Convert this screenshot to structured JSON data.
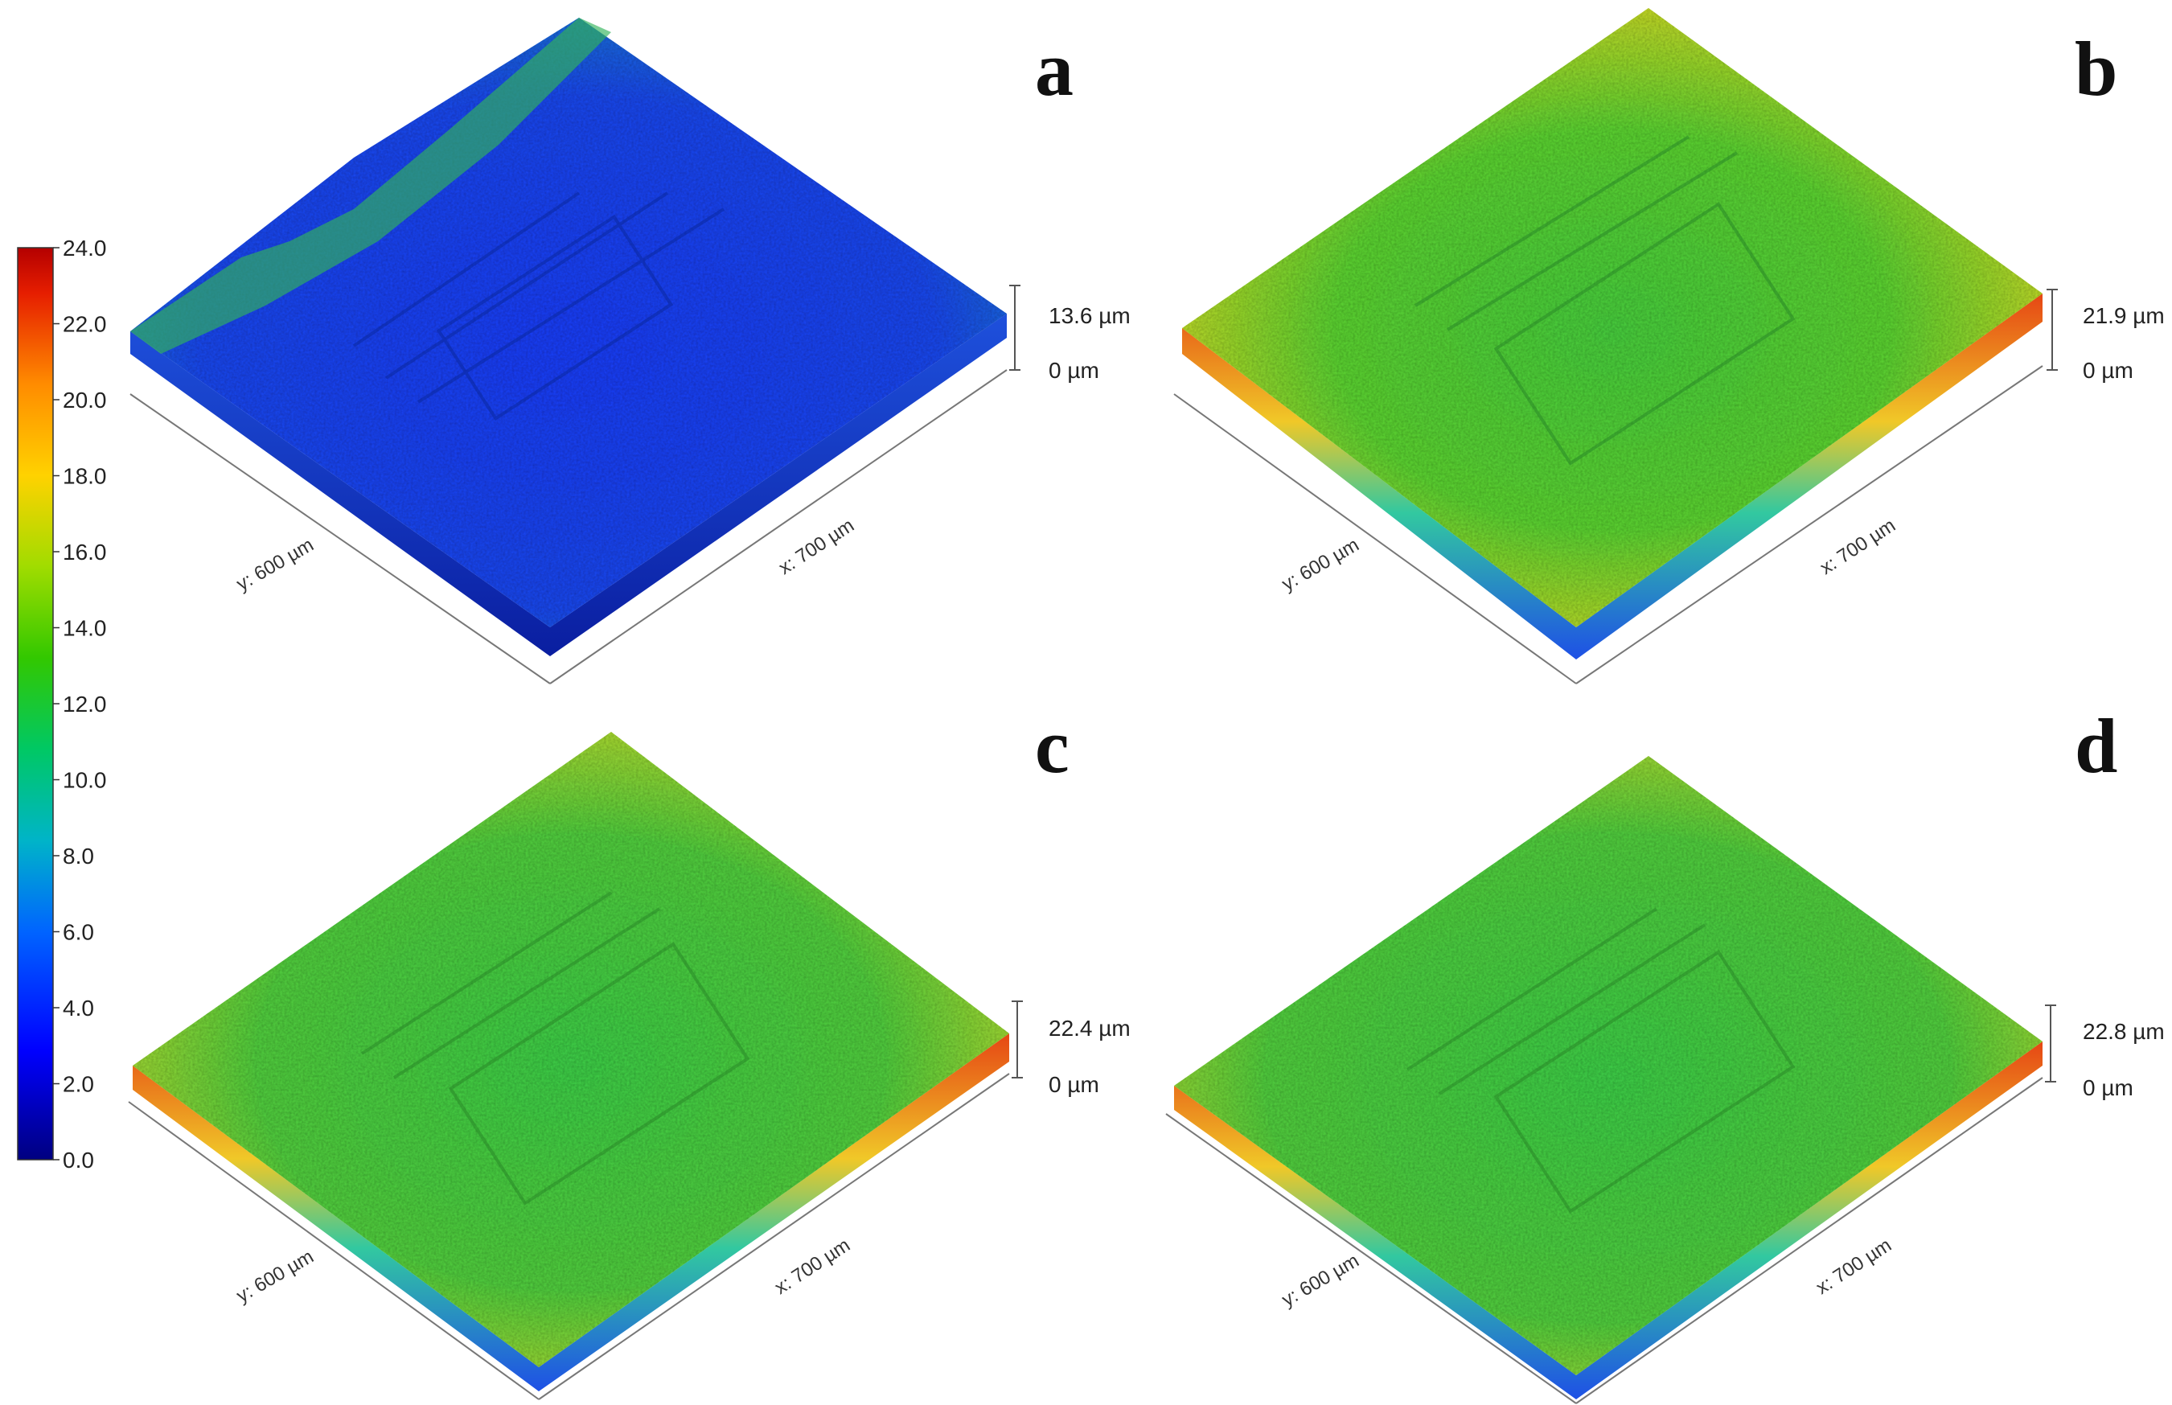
{
  "colorbar": {
    "ticks": [
      "24.0",
      "22.0",
      "20.0",
      "18.0",
      "16.0",
      "14.0",
      "12.0",
      "10.0",
      "8.0",
      "6.0",
      "4.0",
      "2.0",
      "0.0"
    ],
    "colors": [
      "#000080",
      "#0000ff",
      "#00a0ff",
      "#00c8a0",
      "#00c800",
      "#a0e000",
      "#ffd000",
      "#ff8000",
      "#e00000",
      "#b00000"
    ]
  },
  "panels": [
    {
      "letter": "a",
      "y_label": "y: 600 µm",
      "x_label": "x: 700 µm",
      "z_top": "13.6 µm",
      "z_bottom": "0 µm",
      "dominant_level": 4.5
    },
    {
      "letter": "b",
      "y_label": "y: 600 µm",
      "x_label": "x: 700 µm",
      "z_top": "21.9 µm",
      "z_bottom": "0 µm",
      "dominant_level": 14.0
    },
    {
      "letter": "c",
      "y_label": "y: 600 µm",
      "x_label": "x: 700 µm",
      "z_top": "22.4 µm",
      "z_bottom": "0 µm",
      "dominant_level": 13.5
    },
    {
      "letter": "d",
      "y_label": "y: 600 µm",
      "x_label": "x: 700 µm",
      "z_top": "22.8 µm",
      "z_bottom": "0 µm",
      "dominant_level": 13.0
    }
  ]
}
